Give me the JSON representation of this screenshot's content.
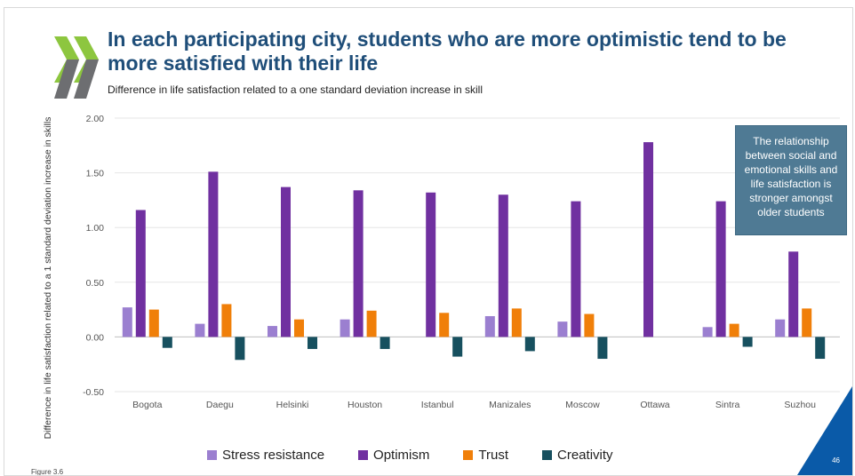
{
  "slide": {
    "title": "In each participating city, students who are more optimistic tend to be more satisfied with their life",
    "subtitle": "Difference in life satisfaction related to a one standard deviation increase in skill",
    "callout": "The relationship between social and emotional skills and life satisfaction is stronger amongst older students",
    "figure_label": "Figure 3.6",
    "page_number": "46",
    "colors": {
      "title": "#1f4e79",
      "chevron_green": "#8dc63f",
      "chevron_grey": "#6d6e71",
      "callout_bg": "#4f7a94",
      "corner": "#0a5aa8"
    }
  },
  "chart_data": {
    "type": "bar",
    "ylabel": "Difference in life satisfaction related to a 1 standard deviation increase in skills",
    "ylim": [
      -0.5,
      2.0
    ],
    "yticks": [
      2.0,
      1.5,
      1.0,
      0.5,
      0.0,
      -0.5
    ],
    "ytick_labels": [
      "2.00",
      "1.50",
      "1.00",
      "0.50",
      "0.00",
      "-0.50"
    ],
    "grid": true,
    "legend_position": "bottom",
    "categories": [
      "Bogota",
      "Daegu",
      "Helsinki",
      "Houston",
      "Istanbul",
      "Manizales",
      "Moscow",
      "Ottawa",
      "Sintra",
      "Suzhou"
    ],
    "series": [
      {
        "name": "Stress resistance",
        "color": "#9b7fd0",
        "values": [
          0.27,
          0.12,
          0.1,
          0.16,
          null,
          0.19,
          0.14,
          null,
          0.09,
          0.16
        ]
      },
      {
        "name": "Optimism",
        "color": "#7030a0",
        "values": [
          1.16,
          1.51,
          1.37,
          1.34,
          1.32,
          1.3,
          1.24,
          1.78,
          1.24,
          0.78
        ]
      },
      {
        "name": "Trust",
        "color": "#f07f09",
        "values": [
          0.25,
          0.3,
          0.16,
          0.24,
          0.22,
          0.26,
          0.21,
          null,
          0.12,
          0.26
        ]
      },
      {
        "name": "Creativity",
        "color": "#17505f",
        "values": [
          -0.1,
          -0.21,
          -0.11,
          -0.11,
          -0.18,
          -0.13,
          -0.2,
          null,
          -0.09,
          -0.2
        ]
      }
    ]
  }
}
